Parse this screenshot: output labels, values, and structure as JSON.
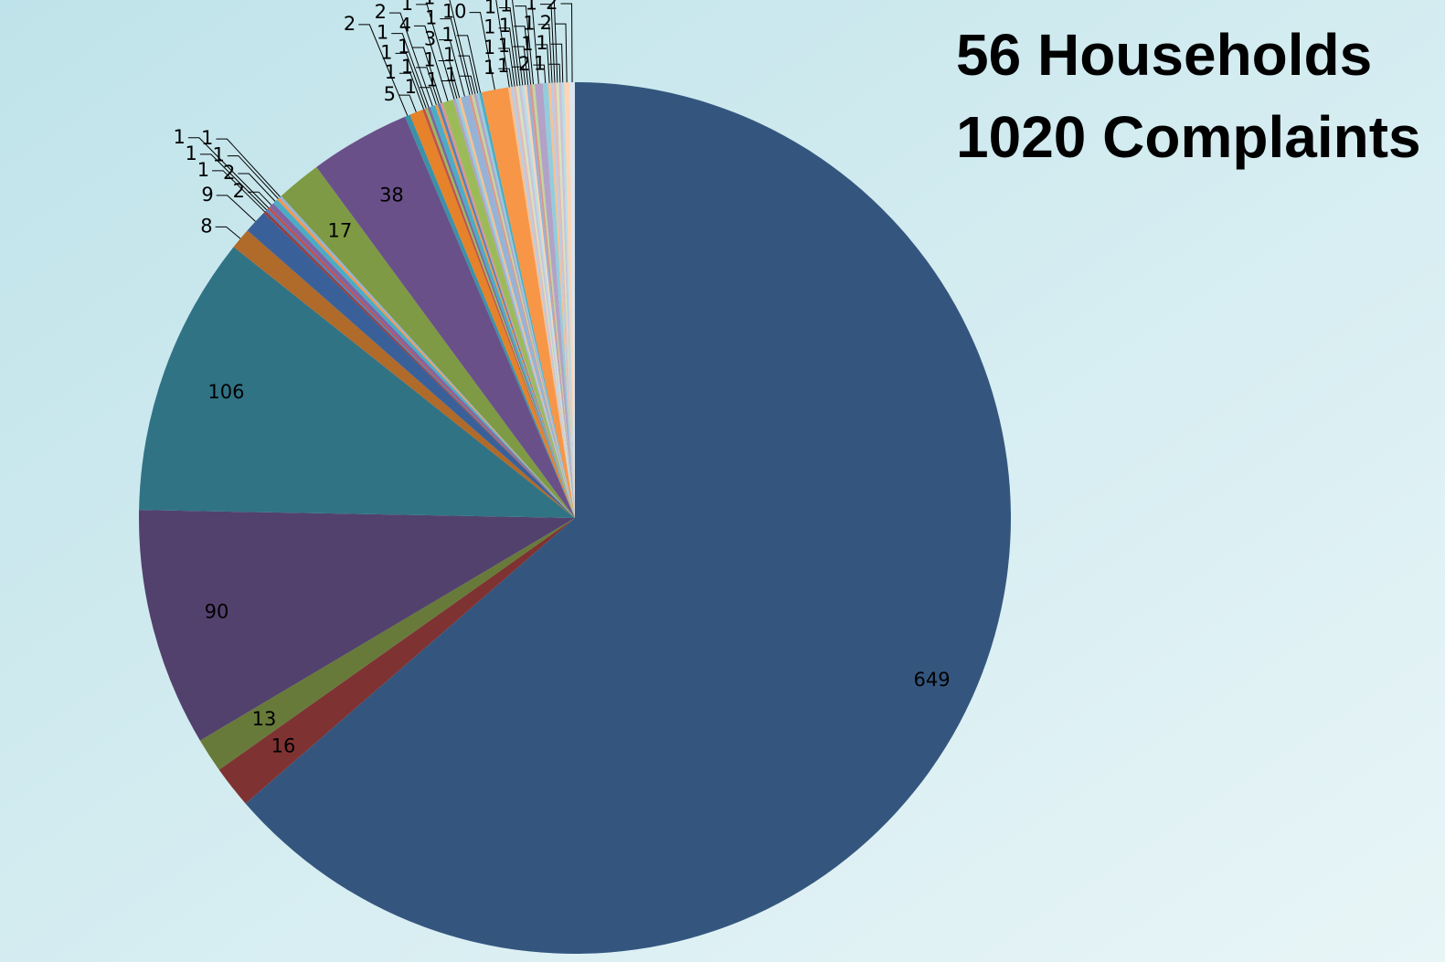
{
  "chart_data": {
    "type": "pie",
    "title": "56 Households",
    "subtitle": "1020 Complaints",
    "values": [
      649,
      16,
      13,
      90,
      106,
      8,
      9,
      1,
      1,
      1,
      2,
      2,
      1,
      1,
      17,
      38,
      2,
      5,
      1,
      1,
      1,
      2,
      1,
      1,
      1,
      4,
      1,
      1,
      1,
      3,
      1,
      1,
      1,
      1,
      1,
      10,
      1,
      1,
      1,
      1,
      1,
      1,
      1,
      1,
      1,
      1,
      3,
      2,
      1,
      1,
      1,
      1,
      1,
      1,
      2,
      2
    ],
    "colors": [
      "#34567E",
      "#7F3232",
      "#677A3A",
      "#52416C",
      "#307385",
      "#B06A2A",
      "#3A6099",
      "#9B3B3A",
      "#4F81BD",
      "#C0504D",
      "#8064A2",
      "#4BACC6",
      "#F79646",
      "#95B3D7",
      "#7E9A44",
      "#6A5089",
      "#3B91A8",
      "#E5822A",
      "#C0504D",
      "#9BBB59",
      "#8064A2",
      "#4BACC6",
      "#F79646",
      "#4F81BD",
      "#D99694",
      "#9BBB59",
      "#B3A2C7",
      "#93CDDD",
      "#FAC090",
      "#95B3D7",
      "#D99694",
      "#C3D69B",
      "#B3A2C7",
      "#93CDDD",
      "#4BACC6",
      "#F79646",
      "#FAC090",
      "#B9CDE5",
      "#E6B9B8",
      "#D7E4BD",
      "#CCC1DA",
      "#B7DEE8",
      "#FCD5B5",
      "#95B3D7",
      "#D99694",
      "#C3D69B",
      "#B3A2C7",
      "#93CDDD",
      "#FAC090",
      "#B9CDE5",
      "#E6B9B8",
      "#D7E4BD",
      "#CCC1DA",
      "#B7DEE8",
      "#FCD5B5",
      "#DCE6F2"
    ]
  }
}
